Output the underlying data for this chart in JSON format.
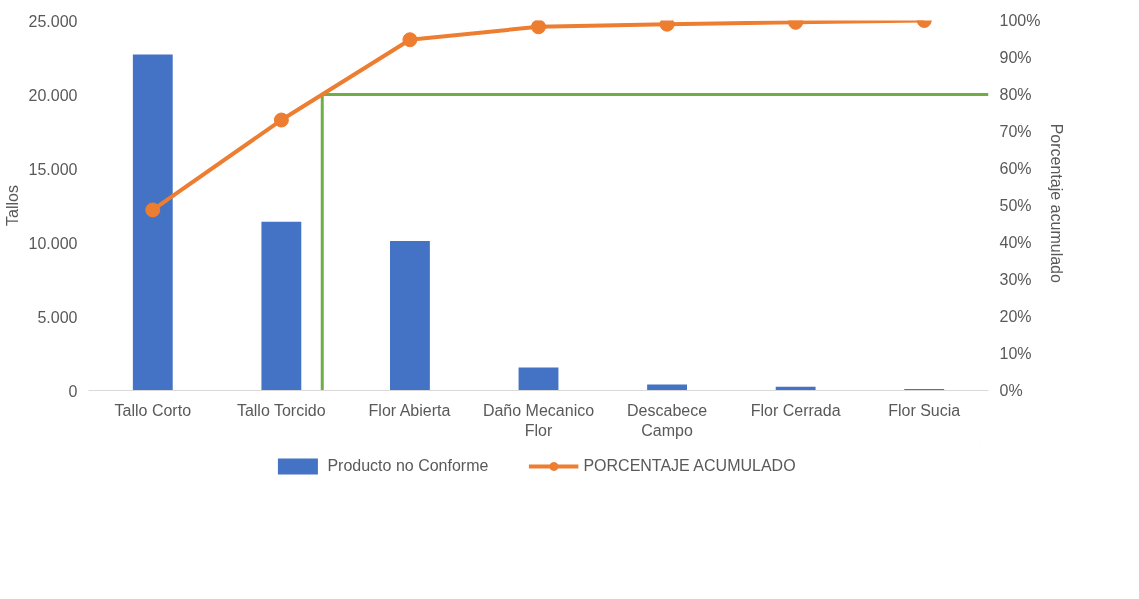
{
  "chart_data": {
    "type": "bar",
    "categories": [
      "Tallo Corto",
      "Tallo Torcido",
      "Flor Abierta",
      "Daño Mecanico\nFlor",
      "Descabece\nCampo",
      "Flor Cerrada",
      "Flor Sucia"
    ],
    "series": [
      {
        "name": "Producto no Conforme",
        "color": "#4472c4",
        "values": [
          22700,
          11400,
          10100,
          1550,
          400,
          250,
          100
        ]
      },
      {
        "name": "PORCENTAJE ACUMULADO",
        "type": "line",
        "axis": "y2",
        "color": "#ed7d31",
        "marker": "circle",
        "values": [
          48.8,
          73.1,
          94.8,
          98.3,
          99.0,
          99.5,
          100
        ]
      }
    ],
    "ylabel": "Tallos",
    "y2label": "Porcentaje  acumulado",
    "ylim": [
      0,
      25000
    ],
    "yticks": [
      {
        "value": 0,
        "label": "0"
      },
      {
        "value": 5000,
        "label": "5.000"
      },
      {
        "value": 10000,
        "label": "10.000"
      },
      {
        "value": 15000,
        "label": "15.000"
      },
      {
        "value": 20000,
        "label": "20.000"
      },
      {
        "value": 25000,
        "label": "25.000"
      }
    ],
    "y2lim": [
      0,
      100
    ],
    "y2ticks": [
      {
        "value": 0,
        "label": "0%"
      },
      {
        "value": 10,
        "label": "10%"
      },
      {
        "value": 20,
        "label": "20%"
      },
      {
        "value": 30,
        "label": "30%"
      },
      {
        "value": 40,
        "label": "40%"
      },
      {
        "value": 50,
        "label": "50%"
      },
      {
        "value": 60,
        "label": "60%"
      },
      {
        "value": 70,
        "label": "70%"
      },
      {
        "value": 80,
        "label": "80%"
      },
      {
        "value": 90,
        "label": "90%"
      },
      {
        "value": 100,
        "label": "100%"
      }
    ],
    "ref_lines": [
      {
        "axis": "y2",
        "value": 80,
        "color": "#70ad47"
      }
    ],
    "legend": "bottom"
  }
}
